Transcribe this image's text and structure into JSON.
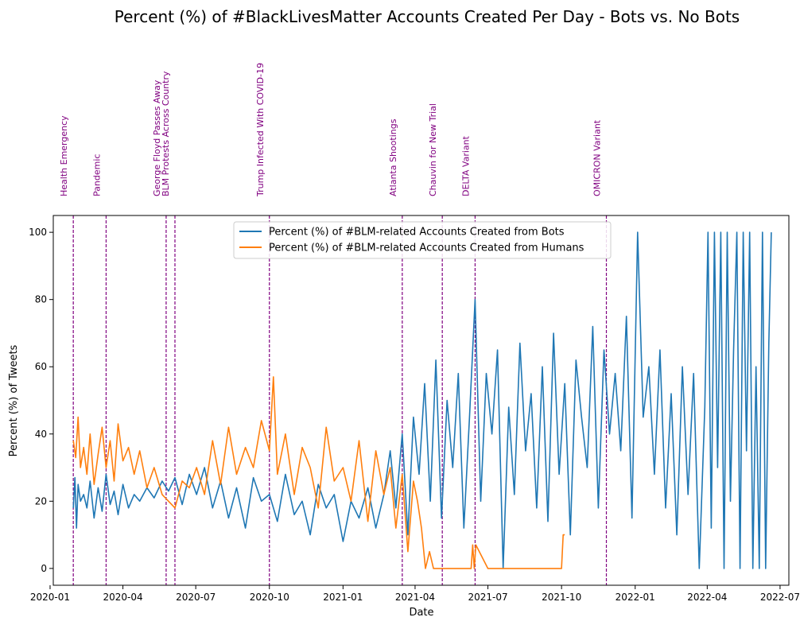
{
  "chart_data": {
    "type": "line",
    "title": "Percent (%) of #BlackLivesMatter Accounts Created Per Day - Bots vs. No Bots",
    "xlabel": "Date",
    "ylabel": "Percent (%) of Tweets",
    "xlim": [
      "2020-01-05",
      "2022-07-12"
    ],
    "ylim": [
      -5,
      105
    ],
    "x_ticks": [
      "2020-01",
      "2020-04",
      "2020-07",
      "2020-10",
      "2021-01",
      "2021-04",
      "2021-07",
      "2021-10",
      "2022-01",
      "2022-04",
      "2022-07"
    ],
    "y_ticks": [
      0,
      20,
      40,
      60,
      80,
      100
    ],
    "grid": false,
    "legend_position": "top-center",
    "events": [
      {
        "date": "2020-01-30",
        "label": "Health Emergency"
      },
      {
        "date": "2020-03-11",
        "label": "Pandemic"
      },
      {
        "date": "2020-05-25",
        "label": "George Floyd Passes Away"
      },
      {
        "date": "2020-06-05",
        "label": "BLM Protests Across Country"
      },
      {
        "date": "2020-10-01",
        "label": "Trump Infected With COVID-19"
      },
      {
        "date": "2021-03-16",
        "label": "Atlanta Shootings"
      },
      {
        "date": "2021-05-05",
        "label": "Chauvin for New Trial"
      },
      {
        "date": "2021-06-15",
        "label": "DELTA Variant"
      },
      {
        "date": "2021-11-26",
        "label": "OMICRON Variant"
      }
    ],
    "event_color": "#800080",
    "series": [
      {
        "name": "Percent (%) of #BLM-related Accounts Created from Bots",
        "color": "#1f77b4",
        "x": [
          "2020-01-30",
          "2020-02-01",
          "2020-02-03",
          "2020-02-05",
          "2020-02-08",
          "2020-02-12",
          "2020-02-16",
          "2020-02-20",
          "2020-02-25",
          "2020-03-01",
          "2020-03-06",
          "2020-03-11",
          "2020-03-16",
          "2020-03-21",
          "2020-03-26",
          "2020-04-01",
          "2020-04-08",
          "2020-04-15",
          "2020-04-22",
          "2020-05-01",
          "2020-05-10",
          "2020-05-20",
          "2020-05-28",
          "2020-06-05",
          "2020-06-14",
          "2020-06-23",
          "2020-07-02",
          "2020-07-12",
          "2020-07-22",
          "2020-08-01",
          "2020-08-11",
          "2020-08-21",
          "2020-09-01",
          "2020-09-11",
          "2020-09-21",
          "2020-10-01",
          "2020-10-11",
          "2020-10-21",
          "2020-11-01",
          "2020-11-11",
          "2020-11-21",
          "2020-12-01",
          "2020-12-11",
          "2020-12-21",
          "2021-01-01",
          "2021-01-11",
          "2021-01-21",
          "2021-02-01",
          "2021-02-11",
          "2021-02-21",
          "2021-03-01",
          "2021-03-08",
          "2021-03-16",
          "2021-03-23",
          "2021-03-30",
          "2021-04-06",
          "2021-04-13",
          "2021-04-20",
          "2021-04-27",
          "2021-05-04",
          "2021-05-11",
          "2021-05-18",
          "2021-05-25",
          "2021-06-01",
          "2021-06-08",
          "2021-06-15",
          "2021-06-22",
          "2021-06-29",
          "2021-07-06",
          "2021-07-13",
          "2021-07-20",
          "2021-07-27",
          "2021-08-03",
          "2021-08-10",
          "2021-08-17",
          "2021-08-24",
          "2021-08-31",
          "2021-09-07",
          "2021-09-14",
          "2021-09-21",
          "2021-09-28",
          "2021-10-05",
          "2021-10-12",
          "2021-10-19",
          "2021-10-26",
          "2021-11-02",
          "2021-11-09",
          "2021-11-16",
          "2021-11-23",
          "2021-11-30",
          "2021-12-07",
          "2021-12-14",
          "2021-12-21",
          "2021-12-28",
          "2022-01-04",
          "2022-01-11",
          "2022-01-18",
          "2022-01-25",
          "2022-02-01",
          "2022-02-08",
          "2022-02-15",
          "2022-02-22",
          "2022-03-01",
          "2022-03-08",
          "2022-03-15",
          "2022-03-22",
          "2022-03-29",
          "2022-04-02",
          "2022-04-06",
          "2022-04-10",
          "2022-04-14",
          "2022-04-18",
          "2022-04-22",
          "2022-04-26",
          "2022-04-30",
          "2022-05-04",
          "2022-05-08",
          "2022-05-12",
          "2022-05-16",
          "2022-05-20",
          "2022-05-24",
          "2022-05-28",
          "2022-06-01",
          "2022-06-05",
          "2022-06-09",
          "2022-06-13",
          "2022-06-17",
          "2022-06-20"
        ],
        "values": [
          18,
          27,
          12,
          25,
          20,
          22,
          18,
          26,
          15,
          24,
          17,
          28,
          19,
          23,
          16,
          25,
          18,
          22,
          20,
          24,
          21,
          26,
          23,
          27,
          19,
          28,
          22,
          30,
          18,
          26,
          15,
          24,
          12,
          27,
          20,
          22,
          14,
          28,
          16,
          20,
          10,
          25,
          18,
          22,
          8,
          20,
          15,
          24,
          12,
          22,
          35,
          18,
          40,
          10,
          45,
          28,
          55,
          20,
          62,
          15,
          50,
          30,
          58,
          12,
          45,
          80,
          20,
          58,
          40,
          65,
          0,
          48,
          22,
          67,
          35,
          52,
          18,
          60,
          14,
          70,
          28,
          55,
          10,
          62,
          45,
          30,
          72,
          18,
          65,
          40,
          58,
          35,
          75,
          15,
          100,
          45,
          60,
          28,
          65,
          18,
          52,
          10,
          60,
          22,
          58,
          0,
          48,
          100,
          12,
          100,
          30,
          100,
          0,
          100,
          20,
          65,
          100,
          0,
          100,
          35,
          100,
          0,
          60,
          0,
          100,
          0,
          67,
          100
        ],
        "visible_max": 100
      },
      {
        "name": "Percent (%) of #BLM-related Accounts Created from Humans",
        "color": "#ff7f0e",
        "x": [
          "2020-01-30",
          "2020-02-02",
          "2020-02-05",
          "2020-02-08",
          "2020-02-12",
          "2020-02-16",
          "2020-02-20",
          "2020-02-25",
          "2020-03-01",
          "2020-03-06",
          "2020-03-11",
          "2020-03-16",
          "2020-03-21",
          "2020-03-26",
          "2020-04-01",
          "2020-04-08",
          "2020-04-15",
          "2020-04-22",
          "2020-05-01",
          "2020-05-10",
          "2020-05-20",
          "2020-05-28",
          "2020-06-05",
          "2020-06-14",
          "2020-06-23",
          "2020-07-02",
          "2020-07-12",
          "2020-07-22",
          "2020-08-01",
          "2020-08-11",
          "2020-08-21",
          "2020-09-01",
          "2020-09-11",
          "2020-09-21",
          "2020-10-01",
          "2020-10-06",
          "2020-10-11",
          "2020-10-21",
          "2020-11-01",
          "2020-11-11",
          "2020-11-21",
          "2020-12-01",
          "2020-12-11",
          "2020-12-21",
          "2021-01-01",
          "2021-01-11",
          "2021-01-21",
          "2021-02-01",
          "2021-02-11",
          "2021-02-21",
          "2021-03-01",
          "2021-03-08",
          "2021-03-16",
          "2021-03-23",
          "2021-03-30",
          "2021-04-04",
          "2021-04-09",
          "2021-04-14",
          "2021-04-19",
          "2021-04-24",
          "2021-05-01",
          "2021-05-10",
          "2021-05-20",
          "2021-06-01",
          "2021-06-10",
          "2021-06-12",
          "2021-06-14",
          "2021-06-16",
          "2021-07-01",
          "2021-08-01",
          "2021-09-01",
          "2021-10-01",
          "2021-10-03",
          "2021-10-05"
        ],
        "values": [
          38,
          33,
          45,
          30,
          36,
          28,
          40,
          25,
          34,
          42,
          30,
          38,
          26,
          43,
          32,
          36,
          28,
          35,
          24,
          30,
          22,
          20,
          18,
          26,
          24,
          30,
          22,
          38,
          25,
          42,
          28,
          36,
          30,
          44,
          35,
          57,
          28,
          40,
          22,
          36,
          30,
          18,
          42,
          26,
          30,
          20,
          38,
          14,
          35,
          22,
          30,
          12,
          28,
          5,
          26,
          20,
          12,
          0,
          5,
          0,
          0,
          0,
          0,
          0,
          0,
          7,
          0,
          7,
          0,
          0,
          0,
          0,
          10,
          10
        ]
      }
    ]
  }
}
